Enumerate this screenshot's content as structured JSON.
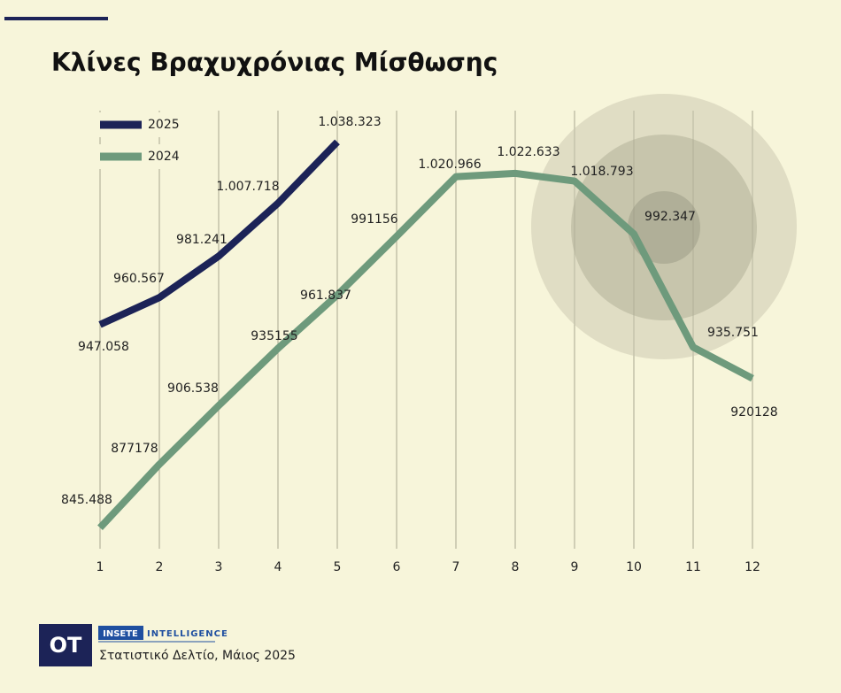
{
  "chart_data": {
    "type": "line",
    "title": "Κλίνες Βραχυχρόνιας Μίσθωσης",
    "categories": [
      "1",
      "2",
      "3",
      "4",
      "5",
      "6",
      "7",
      "8",
      "9",
      "10",
      "11",
      "12"
    ],
    "series": [
      {
        "name": "2025",
        "color": "#1c2357",
        "values": [
          947058,
          960567,
          981241,
          1007718,
          1038323,
          null,
          null,
          null,
          null,
          null,
          null,
          null
        ],
        "value_labels": [
          "947.058",
          "960.567",
          "981.241",
          "1.007.718",
          "1.038.323",
          null,
          null,
          null,
          null,
          null,
          null,
          null
        ]
      },
      {
        "name": "2024",
        "color": "#6e9a7c",
        "values": [
          845488,
          877178,
          906538,
          935155,
          961837,
          991156,
          1020966,
          1022633,
          1018793,
          992347,
          935751,
          920128
        ],
        "value_labels": [
          "845.488",
          "877178",
          "906.538",
          "935155",
          "961.837",
          "991156",
          "1.020.966",
          "1.022.633",
          "1.018.793",
          "992.347",
          "935.751",
          "920128"
        ]
      }
    ],
    "ylim": [
      835000,
      1054000
    ],
    "grid": true,
    "legend": "top-left"
  },
  "footer": {
    "logo": "OT",
    "brand": "INSETE",
    "brand_sub": "INTELLIGENCE",
    "source": "Στατιστικό Δελτίο, Μάιος 2025"
  }
}
